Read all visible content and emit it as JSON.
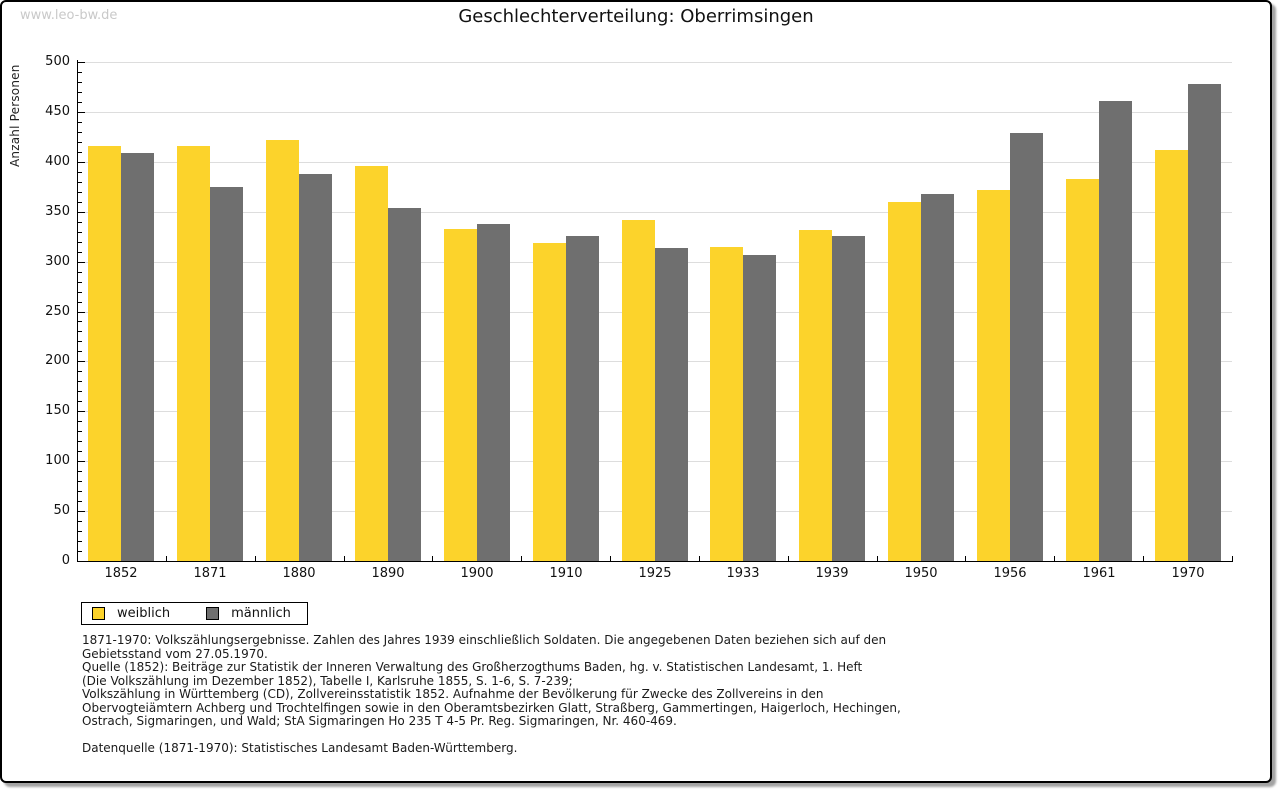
{
  "watermark": "www.leo-bw.de",
  "title": "Geschlechterverteilung: Oberrimsingen",
  "chart_data": {
    "type": "bar",
    "title": "Geschlechterverteilung: Oberrimsingen",
    "xlabel": "",
    "ylabel": "Anzahl Personen",
    "ylim": [
      0,
      500
    ],
    "ytick_step": 50,
    "y_minor_tick_step": 10,
    "grid": true,
    "legend_position": "bottom-left",
    "categories": [
      "1852",
      "1871",
      "1880",
      "1890",
      "1900",
      "1910",
      "1925",
      "1933",
      "1939",
      "1950",
      "1956",
      "1961",
      "1970"
    ],
    "series": [
      {
        "name": "weiblich",
        "color": "#FCD32B",
        "values": [
          416,
          416,
          422,
          396,
          333,
          319,
          342,
          315,
          332,
          360,
          372,
          383,
          412
        ]
      },
      {
        "name": "männlich",
        "color": "#6F6F6F",
        "values": [
          409,
          375,
          388,
          354,
          338,
          326,
          314,
          307,
          326,
          368,
          429,
          461,
          478
        ]
      }
    ]
  },
  "legend": {
    "items": [
      {
        "label": "weiblich",
        "color": "#FCD32B"
      },
      {
        "label": "männlich",
        "color": "#6F6F6F"
      }
    ]
  },
  "footnotes": {
    "lines": [
      "1871-1970: Volkszählungsergebnisse. Zahlen des Jahres 1939 einschließlich Soldaten. Die angegebenen Daten beziehen sich auf den",
      "Gebietsstand vom 27.05.1970.",
      "Quelle (1852): Beiträge zur Statistik der Inneren Verwaltung des Großherzogthums Baden, hg. v. Statistischen Landesamt, 1. Heft",
      "(Die Volkszählung im Dezember 1852), Tabelle I, Karlsruhe 1855, S. 1-6, S. 7-239;",
      "Volkszählung in Württemberg (CD), Zollvereinsstatistik 1852. Aufnahme der Bevölkerung für Zwecke des Zollvereins in den",
      "Obervogteiämtern Achberg und Trochtelfingen sowie in den Oberamtsbezirken Glatt, Straßberg, Gammertingen, Haigerloch, Hechingen,",
      "Ostrach, Sigmaringen, und Wald; StA Sigmaringen Ho 235 T 4-5 Pr. Reg. Sigmaringen, Nr. 460-469."
    ],
    "datasource": "Datenquelle (1871-1970): Statistisches Landesamt Baden-Württemberg."
  },
  "colors": {
    "grid": "#dddddd",
    "axis": "#000000",
    "weiblich": "#FCD32B",
    "maennlich": "#6F6F6F"
  }
}
